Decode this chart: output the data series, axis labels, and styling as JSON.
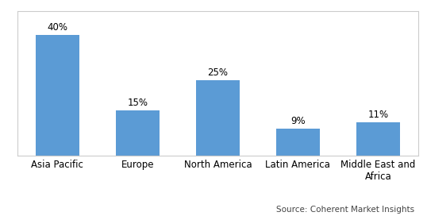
{
  "categories": [
    "Asia Pacific",
    "Europe",
    "North America",
    "Latin America",
    "Middle East and\nAfrica"
  ],
  "values": [
    40,
    15,
    25,
    9,
    11
  ],
  "labels": [
    "40%",
    "15%",
    "25%",
    "9%",
    "11%"
  ],
  "bar_color": "#5B9BD5",
  "background_color": "#FFFFFF",
  "source_text": "Source: Coherent Market Insights",
  "label_fontsize": 8.5,
  "tick_fontsize": 8.5,
  "source_fontsize": 7.5,
  "ylim": [
    0,
    48
  ]
}
